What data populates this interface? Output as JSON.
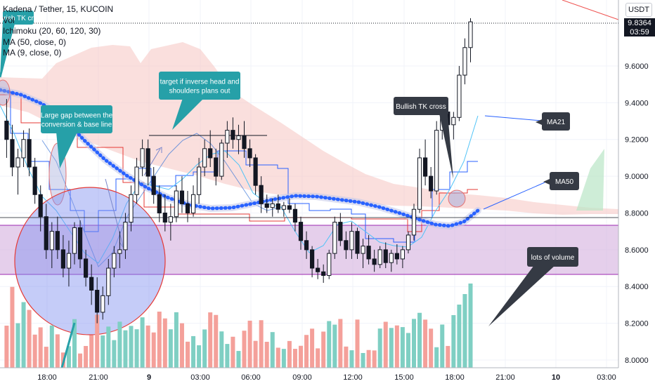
{
  "legend": {
    "symbol": "Kadena / Tether, 15, KUCOIN",
    "volume": "Vol",
    "ichimoku": "Ichimoku (20, 60, 120, 30)",
    "ma50": "MA (50, close, 0)",
    "ma9": "MA (9, close, 0)"
  },
  "currency": "USDT",
  "last_price": {
    "value": "9.8364",
    "countdown": "03:59"
  },
  "annotations": {
    "bearish_tk": "bearish TK cross",
    "gap_line1": "Large gap between the",
    "gap_line2": "conversion & base line",
    "target_line1": "target if inverse head and",
    "target_line2": "shoulders plans out",
    "bullish_tk": "Bullish TK cross",
    "ma21": "MA21",
    "ma50": "MA50",
    "volume": "lots of volume"
  },
  "colors": {
    "up": "#26a69a",
    "down": "#ef5350",
    "vol_up": "#7fcfc3",
    "vol_down": "#f4a09a",
    "cloud": "#f6c9c6",
    "zone": "#d7b6e0",
    "ma": "#2962ff",
    "callout_teal": "#26a0a8",
    "callout_dark": "#353a44"
  },
  "chart_data": {
    "type": "candlestick",
    "x_ticks": [
      "18:00",
      "21:00",
      "9",
      "03:00",
      "06:00",
      "09:00",
      "12:00",
      "15:00",
      "18:00",
      "21:00",
      "10",
      "03:00"
    ],
    "y_ticks": [
      "9.6000",
      "9.4000",
      "9.2000",
      "9.0000",
      "8.8000",
      "8.6000",
      "8.4000",
      "8.2000",
      "8.0000"
    ],
    "ylim": [
      7.98,
      10.0
    ],
    "candles": [
      [
        9.3,
        9.42,
        9.1,
        9.2
      ],
      [
        9.2,
        9.28,
        9.0,
        9.05
      ],
      [
        9.05,
        9.15,
        8.9,
        9.1
      ],
      [
        9.1,
        9.25,
        9.05,
        9.2
      ],
      [
        9.2,
        9.26,
        9.0,
        9.05
      ],
      [
        9.05,
        9.1,
        8.85,
        8.9
      ],
      [
        8.9,
        8.95,
        8.7,
        8.78
      ],
      [
        8.78,
        8.85,
        8.55,
        8.6
      ],
      [
        8.6,
        8.75,
        8.5,
        8.7
      ],
      [
        8.7,
        8.78,
        8.55,
        8.6
      ],
      [
        8.6,
        8.68,
        8.45,
        8.5
      ],
      [
        8.5,
        8.65,
        8.4,
        8.58
      ],
      [
        8.58,
        8.75,
        8.52,
        8.72
      ],
      [
        8.72,
        8.76,
        8.5,
        8.55
      ],
      [
        8.55,
        8.6,
        8.4,
        8.45
      ],
      [
        8.45,
        8.52,
        8.3,
        8.38
      ],
      [
        8.38,
        8.45,
        8.2,
        8.26
      ],
      [
        8.26,
        8.4,
        8.22,
        8.35
      ],
      [
        8.35,
        8.55,
        8.3,
        8.5
      ],
      [
        8.5,
        8.62,
        8.45,
        8.58
      ],
      [
        8.58,
        8.7,
        8.5,
        8.6
      ],
      [
        8.6,
        8.8,
        8.55,
        8.75
      ],
      [
        8.75,
        8.95,
        8.7,
        8.9
      ],
      [
        8.9,
        9.1,
        8.85,
        9.05
      ],
      [
        9.05,
        9.2,
        9.0,
        9.15
      ],
      [
        9.15,
        9.2,
        8.95,
        9.0
      ],
      [
        9.0,
        9.05,
        8.85,
        8.9
      ],
      [
        8.9,
        8.95,
        8.75,
        8.8
      ],
      [
        8.8,
        8.9,
        8.7,
        8.75
      ],
      [
        8.75,
        8.85,
        8.65,
        8.78
      ],
      [
        8.78,
        8.95,
        8.75,
        8.92
      ],
      [
        8.92,
        9.0,
        8.8,
        8.85
      ],
      [
        8.85,
        8.92,
        8.75,
        8.8
      ],
      [
        8.8,
        8.95,
        8.78,
        8.9
      ],
      [
        8.9,
        9.1,
        8.85,
        9.05
      ],
      [
        9.05,
        9.2,
        9.0,
        9.15
      ],
      [
        9.15,
        9.25,
        9.05,
        9.1
      ],
      [
        9.1,
        9.15,
        8.95,
        9.0
      ],
      [
        9.0,
        9.2,
        8.98,
        9.18
      ],
      [
        9.18,
        9.3,
        9.1,
        9.25
      ],
      [
        9.25,
        9.32,
        9.15,
        9.2
      ],
      [
        9.2,
        9.28,
        9.12,
        9.22
      ],
      [
        9.22,
        9.3,
        9.1,
        9.15
      ],
      [
        9.15,
        9.2,
        9.05,
        9.1
      ],
      [
        9.1,
        9.12,
        8.9,
        8.95
      ],
      [
        8.95,
        9.0,
        8.8,
        8.85
      ],
      [
        8.85,
        8.9,
        8.8,
        8.83
      ],
      [
        8.83,
        8.88,
        8.78,
        8.85
      ],
      [
        8.85,
        8.9,
        8.8,
        8.82
      ],
      [
        8.82,
        8.86,
        8.78,
        8.84
      ],
      [
        8.84,
        8.88,
        8.8,
        8.82
      ],
      [
        8.82,
        8.85,
        8.7,
        8.75
      ],
      [
        8.75,
        8.78,
        8.6,
        8.65
      ],
      [
        8.65,
        8.7,
        8.55,
        8.6
      ],
      [
        8.6,
        8.62,
        8.45,
        8.5
      ],
      [
        8.5,
        8.55,
        8.44,
        8.48
      ],
      [
        8.48,
        8.52,
        8.42,
        8.46
      ],
      [
        8.46,
        8.6,
        8.44,
        8.58
      ],
      [
        8.58,
        8.78,
        8.55,
        8.75
      ],
      [
        8.75,
        8.8,
        8.62,
        8.65
      ],
      [
        8.65,
        8.7,
        8.55,
        8.6
      ],
      [
        8.6,
        8.75,
        8.55,
        8.7
      ],
      [
        8.7,
        8.72,
        8.55,
        8.58
      ],
      [
        8.58,
        8.66,
        8.5,
        8.62
      ],
      [
        8.62,
        8.68,
        8.52,
        8.55
      ],
      [
        8.55,
        8.6,
        8.48,
        8.52
      ],
      [
        8.52,
        8.62,
        8.5,
        8.6
      ],
      [
        8.6,
        8.64,
        8.5,
        8.53
      ],
      [
        8.53,
        8.6,
        8.48,
        8.58
      ],
      [
        8.58,
        8.63,
        8.52,
        8.55
      ],
      [
        8.55,
        8.62,
        8.5,
        8.6
      ],
      [
        8.6,
        8.7,
        8.58,
        8.68
      ],
      [
        8.68,
        8.85,
        8.65,
        8.82
      ],
      [
        8.82,
        9.15,
        8.8,
        9.1
      ],
      [
        9.1,
        9.2,
        8.95,
        9.0
      ],
      [
        9.0,
        9.05,
        8.88,
        8.92
      ],
      [
        8.92,
        9.3,
        8.9,
        9.25
      ],
      [
        9.25,
        9.4,
        9.2,
        9.35
      ],
      [
        9.35,
        9.4,
        9.22,
        9.28
      ],
      [
        9.28,
        9.35,
        9.2,
        9.32
      ],
      [
        9.32,
        9.6,
        9.3,
        9.55
      ],
      [
        9.55,
        9.75,
        9.5,
        9.7
      ],
      [
        9.7,
        9.86,
        9.62,
        9.84
      ]
    ]
  }
}
